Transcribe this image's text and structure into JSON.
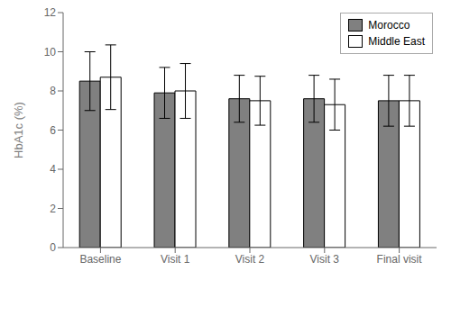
{
  "chart_data": {
    "type": "bar",
    "categories": [
      "Baseline",
      "Visit 1",
      "Visit 2",
      "Visit 3",
      "Final visit"
    ],
    "series": [
      {
        "name": "Morocco",
        "color": "#808080",
        "values": [
          8.5,
          7.9,
          7.6,
          7.6,
          7.5
        ],
        "errors": [
          1.5,
          1.3,
          1.2,
          1.2,
          1.3
        ]
      },
      {
        "name": "Middle East",
        "color": "#ffffff",
        "values": [
          8.7,
          8.0,
          7.5,
          7.3,
          7.5
        ],
        "errors": [
          1.65,
          1.4,
          1.25,
          1.3,
          1.3
        ]
      }
    ],
    "ylabel": "HbA1c (%)",
    "ylim": [
      0,
      12
    ],
    "yticks": [
      0,
      2,
      4,
      6,
      8,
      10,
      12
    ],
    "grid": false,
    "legend": "upper right"
  }
}
